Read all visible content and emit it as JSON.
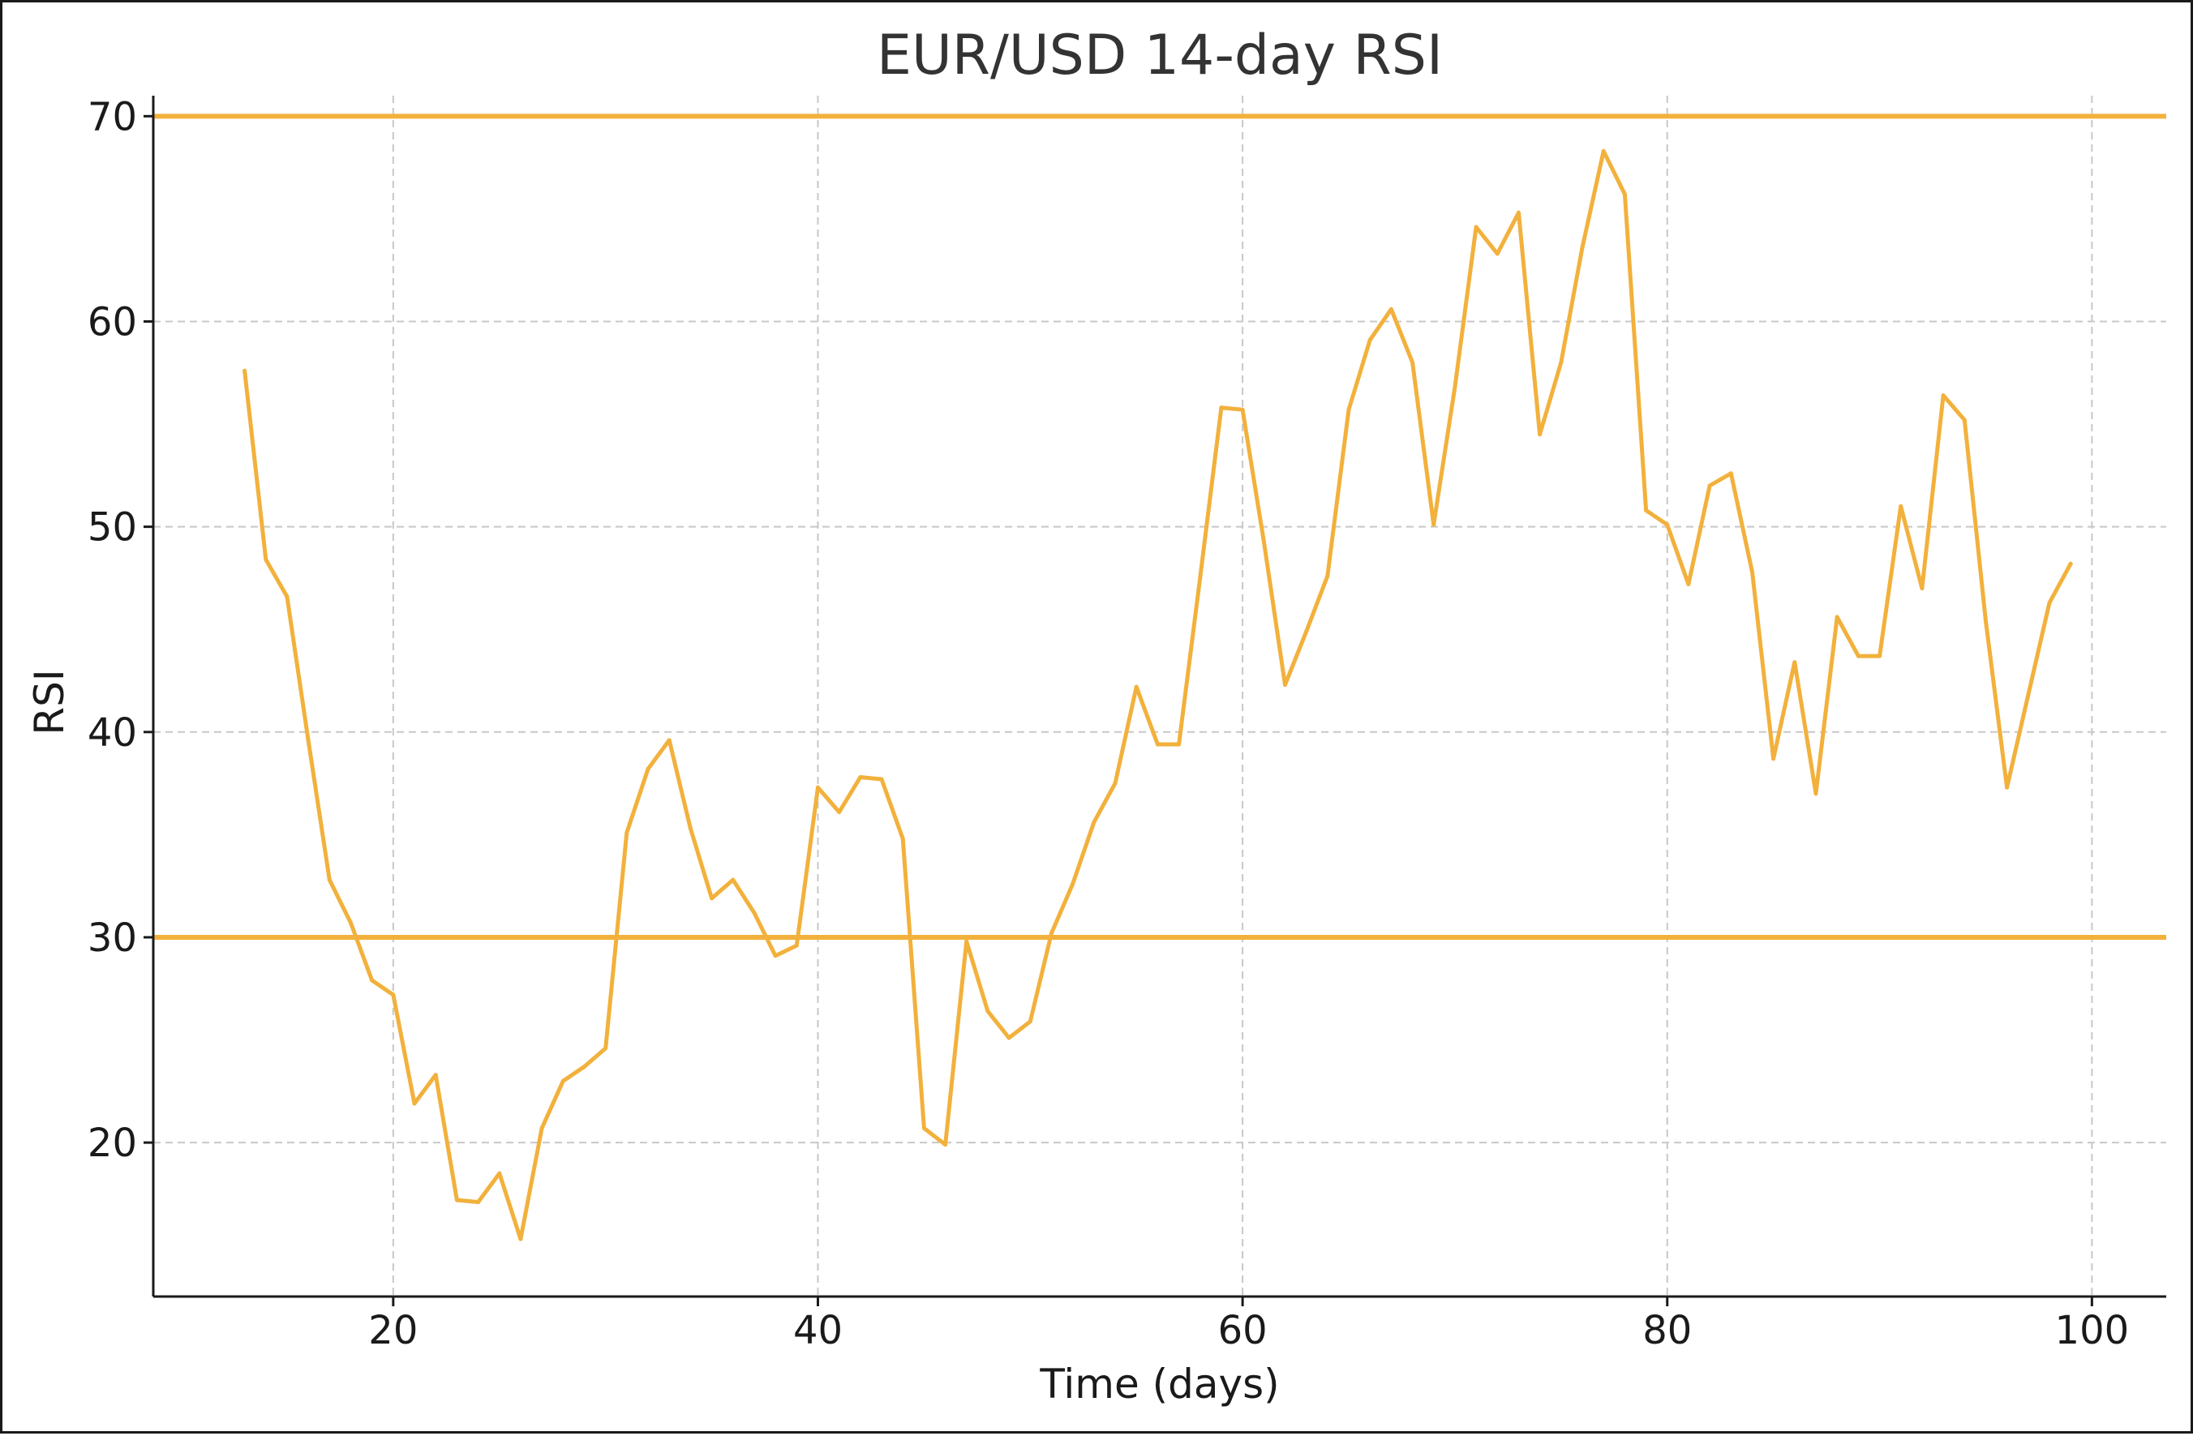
{
  "chart_data": {
    "type": "line",
    "title": "EUR/USD 14-day RSI",
    "xlabel": "Time (days)",
    "ylabel": "RSI",
    "xlim": [
      8.7,
      103.5
    ],
    "ylim": [
      12.5,
      71.0
    ],
    "xticks": [
      20,
      40,
      60,
      80,
      100
    ],
    "yticks": [
      20,
      30,
      40,
      50,
      60,
      70
    ],
    "grid": true,
    "line_color": "#F2B13C",
    "reference_lines": [
      {
        "y": 70,
        "color": "#F2B13C"
      },
      {
        "y": 30,
        "color": "#F2B13C"
      }
    ],
    "series": [
      {
        "x": [
          13,
          14,
          15,
          16,
          17,
          18,
          19,
          20,
          21,
          22,
          23,
          24,
          25,
          26,
          27,
          28,
          29,
          30,
          31,
          32,
          33,
          34,
          35,
          36,
          37,
          38,
          39,
          40,
          41,
          42,
          43,
          44,
          45,
          46,
          47,
          48,
          49,
          50,
          51,
          52,
          53,
          54,
          55,
          56,
          57,
          58,
          59,
          60,
          61,
          62,
          63,
          64,
          65,
          66,
          67,
          68,
          69,
          70,
          71,
          72,
          73,
          74,
          75,
          76,
          77,
          78,
          79,
          80,
          81,
          82,
          83,
          84,
          85,
          86,
          87,
          88,
          89,
          90,
          91,
          92,
          93,
          94,
          95,
          96,
          97,
          98,
          99
        ],
        "y": [
          57.6,
          48.4,
          46.6,
          39.6,
          32.8,
          30.7,
          27.9,
          27.2,
          21.9,
          23.3,
          17.2,
          17.1,
          18.5,
          15.3,
          20.7,
          23.0,
          23.7,
          24.6,
          35.1,
          38.2,
          39.6,
          35.3,
          31.9,
          32.8,
          31.2,
          29.1,
          29.6,
          37.3,
          36.1,
          37.8,
          37.7,
          34.8,
          20.7,
          19.9,
          29.8,
          26.4,
          25.1,
          25.9,
          30.2,
          32.6,
          35.6,
          37.5,
          42.2,
          39.4,
          39.4,
          47.5,
          55.8,
          55.7,
          49.3,
          42.3,
          44.9,
          47.6,
          55.7,
          59.1,
          60.6,
          58.0,
          50.1,
          56.8,
          64.6,
          63.3,
          65.3,
          54.5,
          58.0,
          63.6,
          68.3,
          66.2,
          50.8,
          50.1,
          47.2,
          52.0,
          52.6,
          47.8,
          38.7,
          43.4,
          37.0,
          45.6,
          43.7,
          43.7,
          51.0,
          47.0,
          56.4,
          55.2,
          45.4,
          37.3,
          41.8,
          46.3,
          48.2
        ]
      }
    ]
  }
}
